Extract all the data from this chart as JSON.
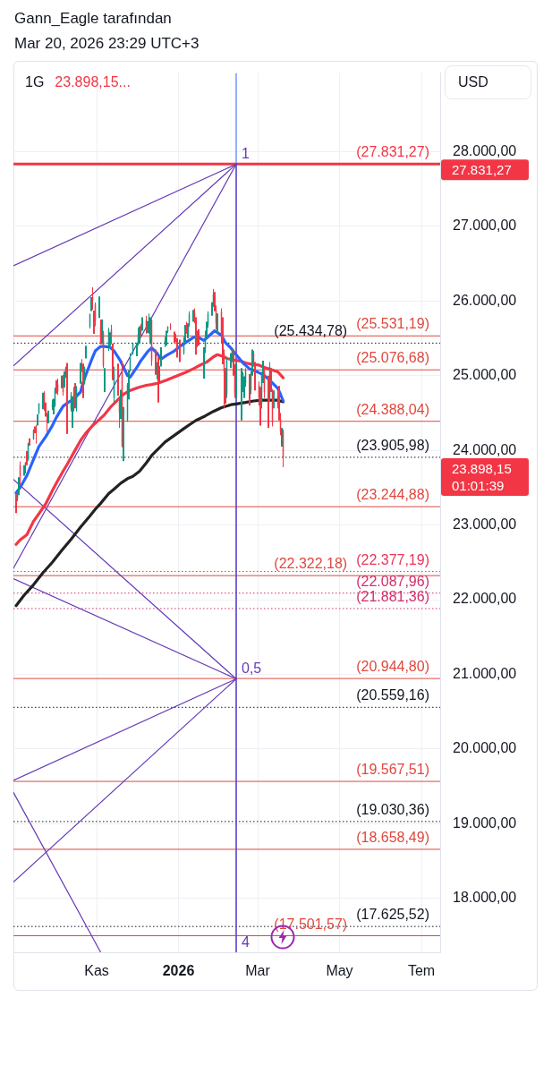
{
  "chart_data": {
    "type": "candlestick",
    "title": "1G",
    "annotations": [
      "Gann_Eagle tarafından",
      "Mar 20, 2026 23:29 UTC+3",
      "23.898,15...",
      "USD",
      "27.831,27",
      "23.898,15",
      "01:01:39",
      {
        "text": "1",
        "x": "2026-02-13",
        "y": 27831.27
      },
      {
        "text": "0,5",
        "x": "2026-02-13",
        "y": 20944.8
      },
      {
        "text": "4",
        "x": "2026-02-13",
        "y": 17280
      }
    ],
    "series": [
      {
        "x": [
          "2025-09-02",
          "2025-09-03",
          "2025-09-04",
          "2025-09-05",
          "2025-09-08",
          "2025-09-09",
          "2025-09-10",
          "2025-09-11",
          "2025-09-12",
          "2025-09-15",
          "2025-09-16",
          "2025-09-17",
          "2025-09-18",
          "2025-09-19",
          "2025-09-22",
          "2025-09-23",
          "2025-09-24",
          "2025-09-25",
          "2025-09-26",
          "2025-09-29",
          "2025-09-30",
          "2025-10-01",
          "2025-10-02",
          "2025-10-03",
          "2025-10-06",
          "2025-10-07",
          "2025-10-08",
          "2025-10-09",
          "2025-10-10",
          "2025-10-13",
          "2025-10-14",
          "2025-10-15",
          "2025-10-16",
          "2025-10-17",
          "2025-10-20",
          "2025-10-21",
          "2025-10-22",
          "2025-10-23",
          "2025-10-24",
          "2025-10-27",
          "2025-10-28",
          "2025-10-29",
          "2025-10-30",
          "2025-10-31",
          "2025-11-03",
          "2025-11-04",
          "2025-11-05",
          "2025-11-06",
          "2025-11-07",
          "2025-11-10",
          "2025-11-11",
          "2025-11-12",
          "2025-11-13",
          "2025-11-14",
          "2025-11-17",
          "2025-11-18",
          "2025-11-19",
          "2025-11-20",
          "2025-11-21",
          "2025-11-24",
          "2025-11-25",
          "2025-11-26",
          "2025-11-28",
          "2025-12-01",
          "2025-12-02",
          "2025-12-03",
          "2025-12-04",
          "2025-12-05",
          "2025-12-08",
          "2025-12-09",
          "2025-12-10",
          "2025-12-11",
          "2025-12-12",
          "2025-12-15",
          "2025-12-16",
          "2025-12-17",
          "2025-12-18",
          "2025-12-19",
          "2025-12-22",
          "2025-12-23",
          "2025-12-24",
          "2025-12-26",
          "2025-12-29",
          "2025-12-30",
          "2025-12-31",
          "2026-01-02",
          "2026-01-05",
          "2026-01-06",
          "2026-01-07",
          "2026-01-08",
          "2026-01-09",
          "2026-01-12",
          "2026-01-13",
          "2026-01-14",
          "2026-01-15",
          "2026-01-16",
          "2026-01-20",
          "2026-01-21",
          "2026-01-22",
          "2026-01-23",
          "2026-01-26",
          "2026-01-27",
          "2026-01-28",
          "2026-01-29",
          "2026-01-30",
          "2026-02-02",
          "2026-02-03",
          "2026-02-04",
          "2026-02-05",
          "2026-02-06",
          "2026-02-09",
          "2026-02-10",
          "2026-02-11",
          "2026-02-12",
          "2026-02-13",
          "2026-02-17",
          "2026-02-18",
          "2026-02-19",
          "2026-02-20",
          "2026-02-23",
          "2026-02-24",
          "2026-02-25",
          "2026-02-26",
          "2026-02-27",
          "2026-03-02",
          "2026-03-03",
          "2026-03-04",
          "2026-03-05",
          "2026-03-06",
          "2026-03-09",
          "2026-03-10",
          "2026-03-11",
          "2026-03-12",
          "2026-03-13",
          "2026-03-16",
          "2026-03-17",
          "2026-03-18",
          "2026-03-19",
          "2026-03-20"
        ],
        "ohlc": [
          [
            23280,
            23420,
            23160,
            23230
          ],
          [
            23350,
            23450,
            23320,
            23415
          ],
          [
            23430,
            23640,
            23400,
            23633
          ],
          [
            23800,
            23850,
            23540,
            23652
          ],
          [
            23700,
            23800,
            23660,
            23762
          ],
          [
            23770,
            23840,
            23690,
            23839
          ],
          [
            23950,
            23990,
            23800,
            23849
          ],
          [
            23880,
            24100,
            23860,
            24093
          ],
          [
            24110,
            24160,
            24060,
            24093
          ],
          [
            24150,
            24280,
            24140,
            24276
          ],
          [
            24300,
            24320,
            24230,
            24275
          ],
          [
            24280,
            24340,
            24090,
            24239
          ],
          [
            24400,
            24480,
            24330,
            24454
          ],
          [
            24500,
            24630,
            24480,
            24626
          ],
          [
            24560,
            24770,
            24550,
            24762
          ],
          [
            24770,
            24790,
            24530,
            24580
          ],
          [
            24620,
            24640,
            24450,
            24504
          ],
          [
            24410,
            24500,
            24250,
            24395
          ],
          [
            24420,
            24530,
            24360,
            24503
          ],
          [
            24580,
            24680,
            24540,
            24612
          ],
          [
            24580,
            24690,
            24480,
            24680
          ],
          [
            24600,
            24840,
            24580,
            24820
          ],
          [
            24900,
            24940,
            24760,
            24850
          ],
          [
            24880,
            24960,
            24740,
            24785
          ],
          [
            24850,
            25000,
            24830,
            24980
          ],
          [
            25000,
            25010,
            24730,
            24780
          ],
          [
            24850,
            25060,
            24840,
            25050
          ],
          [
            25070,
            25120,
            24970,
            25100
          ],
          [
            25150,
            25170,
            24220,
            24222
          ],
          [
            24550,
            24780,
            24520,
            24750
          ],
          [
            24450,
            24720,
            24300,
            24600
          ],
          [
            24700,
            24850,
            24520,
            24750
          ],
          [
            24830,
            24900,
            24560,
            24650
          ],
          [
            24600,
            24860,
            24520,
            24818
          ],
          [
            24900,
            25170,
            24890,
            25142
          ],
          [
            25150,
            25220,
            25050,
            25140
          ],
          [
            25150,
            25160,
            24700,
            24880
          ],
          [
            24900,
            25120,
            24880,
            25100
          ],
          [
            25250,
            25400,
            25230,
            25358
          ],
          [
            25650,
            25830,
            25630,
            25821
          ],
          [
            25900,
            26050,
            25860,
            26012
          ],
          [
            26050,
            26182,
            25880,
            26012
          ],
          [
            25820,
            25870,
            25560,
            25600
          ],
          [
            25950,
            25980,
            25660,
            25732
          ],
          [
            25900,
            26060,
            25770,
            25972
          ],
          [
            25650,
            25750,
            25420,
            25435
          ],
          [
            25450,
            25750,
            25420,
            25620
          ],
          [
            25580,
            25600,
            25100,
            25130
          ],
          [
            25000,
            25100,
            24780,
            25060
          ],
          [
            25400,
            25640,
            25330,
            25612
          ],
          [
            25500,
            25580,
            25400,
            25533
          ],
          [
            25620,
            25680,
            25420,
            25517
          ],
          [
            25400,
            25430,
            24940,
            24993
          ],
          [
            24700,
            25120,
            24640,
            25008
          ],
          [
            24980,
            25160,
            24730,
            24800
          ],
          [
            24650,
            24700,
            24300,
            24503
          ],
          [
            24540,
            24810,
            24420,
            24640
          ],
          [
            25100,
            25200,
            24040,
            24054
          ],
          [
            24130,
            24580,
            23854,
            24240
          ],
          [
            24400,
            24900,
            24380,
            24875
          ],
          [
            24880,
            25070,
            24680,
            25018
          ],
          [
            25080,
            25300,
            25050,
            25237
          ],
          [
            25300,
            25440,
            25280,
            25435
          ],
          [
            25300,
            25440,
            25260,
            25342
          ],
          [
            25420,
            25640,
            25400,
            25555
          ],
          [
            25470,
            25660,
            25430,
            25606
          ],
          [
            25640,
            25690,
            25510,
            25581
          ],
          [
            25620,
            25780,
            25600,
            25692
          ],
          [
            25740,
            25800,
            25560,
            25628
          ],
          [
            25610,
            25730,
            25570,
            25670
          ],
          [
            25660,
            25830,
            25560,
            25776
          ],
          [
            25650,
            25780,
            25420,
            25760
          ],
          [
            25740,
            25760,
            25130,
            25197
          ],
          [
            25330,
            25350,
            25010,
            25067
          ],
          [
            25050,
            25180,
            24950,
            25132
          ],
          [
            25200,
            25250,
            24640,
            24647
          ],
          [
            25000,
            25130,
            24900,
            25019
          ],
          [
            25150,
            25380,
            25120,
            25346
          ],
          [
            25450,
            25520,
            25380,
            25461
          ],
          [
            25430,
            25600,
            25400,
            25588
          ],
          [
            25590,
            25660,
            25570,
            25656
          ],
          [
            25660,
            25700,
            25610,
            25644
          ],
          [
            25560,
            25590,
            25440,
            25525
          ],
          [
            25520,
            25560,
            25450,
            25465
          ],
          [
            25480,
            25500,
            25240,
            25250
          ],
          [
            25350,
            25480,
            25180,
            25230
          ],
          [
            25300,
            25520,
            25280,
            25470
          ],
          [
            25460,
            25680,
            25440,
            25650
          ],
          [
            25640,
            25720,
            25560,
            25600
          ],
          [
            25580,
            25700,
            25500,
            25660
          ],
          [
            25680,
            25860,
            25650,
            25820
          ],
          [
            25780,
            25880,
            25720,
            25850
          ],
          [
            25840,
            25900,
            25700,
            25760
          ],
          [
            25750,
            25780,
            25280,
            25410
          ],
          [
            25450,
            25600,
            25380,
            25520
          ],
          [
            25560,
            25620,
            25400,
            25480
          ],
          [
            25000,
            25380,
            24960,
            25330
          ],
          [
            25350,
            25600,
            25300,
            25540
          ],
          [
            25560,
            25720,
            25500,
            25680
          ],
          [
            25680,
            25860,
            25640,
            25830
          ],
          [
            25850,
            25980,
            25800,
            25940
          ],
          [
            25950,
            26160,
            25920,
            26090
          ],
          [
            26090,
            26120,
            25860,
            25900
          ],
          [
            25880,
            25940,
            25620,
            25700
          ],
          [
            25720,
            25830,
            25560,
            25780
          ],
          [
            25860,
            25900,
            25430,
            25550
          ],
          [
            25740,
            25780,
            25150,
            25230
          ],
          [
            25300,
            25350,
            24560,
            25050
          ],
          [
            25050,
            25100,
            24620,
            24680
          ],
          [
            24750,
            25250,
            24700,
            25200
          ],
          [
            25150,
            25300,
            25100,
            25260
          ],
          [
            25250,
            25360,
            25180,
            25330
          ],
          [
            25310,
            25350,
            25000,
            25050
          ],
          [
            25100,
            25150,
            24700,
            24760
          ],
          [
            24760,
            25170,
            24700,
            25120
          ],
          [
            24900,
            25100,
            24400,
            25050
          ],
          [
            24850,
            25050,
            24780,
            25030
          ],
          [
            24760,
            24990,
            24700,
            24950
          ],
          [
            24900,
            25100,
            24850,
            25070
          ],
          [
            24990,
            25020,
            24600,
            24680
          ],
          [
            24800,
            25060,
            24750,
            25030
          ],
          [
            25050,
            25350,
            25000,
            25320
          ],
          [
            25300,
            25330,
            25120,
            25170
          ],
          [
            25150,
            25180,
            24800,
            24840
          ],
          [
            24870,
            24920,
            24600,
            24700
          ],
          [
            24800,
            24850,
            24330,
            24600
          ],
          [
            24620,
            25050,
            24560,
            25000
          ],
          [
            24950,
            25200,
            24900,
            25150
          ],
          [
            25050,
            25100,
            24700,
            24780
          ],
          [
            24950,
            25000,
            24300,
            24650
          ],
          [
            24700,
            25180,
            24650,
            25120
          ],
          [
            25050,
            25100,
            24780,
            24830
          ],
          [
            24800,
            24820,
            24320,
            24370
          ],
          [
            24640,
            24800,
            24560,
            24760
          ],
          [
            24720,
            24790,
            24560,
            24610
          ],
          [
            24800,
            24860,
            24400,
            24450
          ],
          [
            24420,
            24500,
            24200,
            24250
          ],
          [
            24110,
            24300,
            24050,
            24250
          ],
          [
            24250,
            24280,
            23774,
            23898.15
          ]
        ],
        "colors": [
          "#f23645",
          "#089981",
          "#089981",
          "#f23645",
          "#089981",
          "#089981",
          "#f23645",
          "#089981",
          "#f23645",
          "#089981",
          "#f23645",
          "#f23645",
          "#089981",
          "#089981",
          "#089981",
          "#f23645",
          "#f23645",
          "#f23645",
          "#089981",
          "#089981",
          "#089981",
          "#089981",
          "#f23645",
          "#f23645",
          "#089981",
          "#f23645",
          "#089981",
          "#089981",
          "#f23645",
          "#089981",
          "#089981",
          "#089981",
          "#f23645",
          "#089981",
          "#089981",
          "#f23645",
          "#f23645",
          "#089981",
          "#089981",
          "#089981",
          "#089981",
          "#f23645",
          "#f23645",
          "#f23645",
          "#089981",
          "#f23645",
          "#089981",
          "#f23645",
          "#089981",
          "#089981",
          "#089981",
          "#f23645",
          "#f23645",
          "#089981",
          "#f23645",
          "#f23645",
          "#089981",
          "#f23645",
          "#089981",
          "#089981",
          "#089981",
          "#089981",
          "#089981",
          "#089981",
          "#089981",
          "#089981",
          "#f23645",
          "#089981",
          "#f23645",
          "#089981",
          "#089981",
          "#089981",
          "#f23645",
          "#f23645",
          "#089981",
          "#f23645",
          "#089981",
          "#089981",
          "#089981",
          "#089981",
          "#089981",
          "#f23645",
          "#f23645",
          "#f23645",
          "#f23645",
          "#f23645",
          "#089981",
          "#089981",
          "#f23645",
          "#089981",
          "#089981",
          "#089981",
          "#f23645",
          "#f23645",
          "#089981",
          "#f23645",
          "#089981",
          "#089981",
          "#089981",
          "#089981",
          "#089981",
          "#089981",
          "#f23645",
          "#f23645",
          "#089981",
          "#f23645",
          "#f23645",
          "#f23645",
          "#f23645",
          "#089981",
          "#089981",
          "#089981",
          "#f23645",
          "#f23645",
          "#089981",
          "#089981",
          "#089981",
          "#089981",
          "#089981",
          "#f23645",
          "#089981",
          "#089981",
          "#f23645",
          "#f23645",
          "#f23645",
          "#f23645",
          "#089981",
          "#089981",
          "#f23645",
          "#f23645",
          "#089981",
          "#f23645",
          "#f23645",
          "#089981",
          "#f23645",
          "#f23645",
          "#f23645",
          "#089981",
          "#f23645"
        ]
      },
      {
        "type": "line",
        "color": "#2962ff",
        "x": [
          "2025-09-02",
          "2025-09-05",
          "2025-09-10",
          "2025-09-15",
          "2025-09-19",
          "2025-09-24",
          "2025-09-29",
          "2025-10-02",
          "2025-10-07",
          "2025-10-10",
          "2025-10-15",
          "2025-10-20",
          "2025-10-22",
          "2025-10-24",
          "2025-10-28",
          "2025-10-31",
          "2025-11-04",
          "2025-11-07",
          "2025-11-11",
          "2025-11-14",
          "2025-11-18",
          "2025-11-20",
          "2025-11-24",
          "2025-11-26",
          "2025-12-01",
          "2025-12-04",
          "2025-12-09",
          "2025-12-12",
          "2025-12-16",
          "2025-12-19",
          "2025-12-23",
          "2025-12-29",
          "2026-01-02",
          "2026-01-07",
          "2026-01-12",
          "2026-01-15",
          "2026-01-20",
          "2026-01-23",
          "2026-01-28",
          "2026-02-02",
          "2026-02-05",
          "2026-02-09",
          "2026-02-12",
          "2026-02-18",
          "2026-02-23",
          "2026-02-26",
          "2026-03-03",
          "2026-03-06",
          "2026-03-11",
          "2026-03-16",
          "2026-03-18",
          "2026-03-20"
        ],
        "values": [
          23430,
          23500,
          23660,
          23880,
          24050,
          24180,
          24330,
          24440,
          24590,
          24630,
          24690,
          24780,
          24910,
          25010,
          25200,
          25330,
          25390,
          25390,
          25380,
          25330,
          25220,
          25150,
          25000,
          24980,
          25110,
          25200,
          25320,
          25370,
          25300,
          25220,
          25270,
          25330,
          25390,
          25450,
          25510,
          25520,
          25470,
          25520,
          25600,
          25540,
          25440,
          25370,
          25300,
          25170,
          25090,
          25070,
          25030,
          25000,
          24920,
          24830,
          24750,
          24660
        ]
      },
      {
        "type": "line",
        "color": "#f23645",
        "x": [
          "2025-09-02",
          "2025-09-05",
          "2025-09-10",
          "2025-09-15",
          "2025-09-19",
          "2025-09-24",
          "2025-09-29",
          "2025-10-02",
          "2025-10-07",
          "2025-10-10",
          "2025-10-15",
          "2025-10-20",
          "2025-10-24",
          "2025-10-29",
          "2025-11-03",
          "2025-11-07",
          "2025-11-12",
          "2025-11-17",
          "2025-11-21",
          "2025-11-26",
          "2025-12-02",
          "2025-12-08",
          "2025-12-12",
          "2025-12-17",
          "2025-12-23",
          "2025-12-30",
          "2026-01-06",
          "2026-01-12",
          "2026-01-16",
          "2026-01-22",
          "2026-01-27",
          "2026-01-30",
          "2026-02-03",
          "2026-02-06",
          "2026-02-11",
          "2026-02-17",
          "2026-02-20",
          "2026-02-25",
          "2026-03-02",
          "2026-03-06",
          "2026-03-11",
          "2026-03-16",
          "2026-03-18",
          "2026-03-20"
        ],
        "values": [
          22740,
          22800,
          22870,
          23050,
          23150,
          23280,
          23460,
          23560,
          23720,
          23810,
          23970,
          24130,
          24230,
          24330,
          24410,
          24480,
          24590,
          24680,
          24750,
          24800,
          24840,
          24870,
          24880,
          24900,
          24940,
          24990,
          25040,
          25090,
          25130,
          25180,
          25250,
          25280,
          25260,
          25230,
          25210,
          25190,
          25170,
          25150,
          25140,
          25110,
          25080,
          25050,
          25010,
          24970
        ]
      },
      {
        "type": "line",
        "color": "#222222",
        "x": [
          "2025-09-02",
          "2025-09-08",
          "2025-09-15",
          "2025-09-22",
          "2025-09-29",
          "2025-10-06",
          "2025-10-13",
          "2025-10-20",
          "2025-10-27",
          "2025-10-31",
          "2025-11-04",
          "2025-11-10",
          "2025-11-14",
          "2025-11-19",
          "2025-11-24",
          "2025-11-28",
          "2025-12-03",
          "2025-12-08",
          "2025-12-12",
          "2025-12-17",
          "2025-12-22",
          "2025-12-29",
          "2026-01-05",
          "2026-01-09",
          "2026-01-14",
          "2026-01-21",
          "2026-01-27",
          "2026-02-02",
          "2026-02-09",
          "2026-02-13",
          "2026-02-20",
          "2026-02-26",
          "2026-03-04",
          "2026-03-10",
          "2026-03-16",
          "2026-03-20"
        ],
        "values": [
          21920,
          22060,
          22200,
          22360,
          22500,
          22660,
          22810,
          22970,
          23120,
          23210,
          23290,
          23420,
          23480,
          23560,
          23620,
          23650,
          23720,
          23830,
          23930,
          24020,
          24110,
          24200,
          24290,
          24340,
          24400,
          24460,
          24520,
          24570,
          24610,
          24620,
          24640,
          24660,
          24670,
          24670,
          24670,
          24650
        ]
      },
      {
        "type": "line",
        "color": "#673ab7",
        "x": [
          "2025-08-31",
          "2026-02-13"
        ],
        "values": [
          26470,
          27830
        ]
      },
      {
        "type": "line",
        "color": "#673ab7",
        "x": [
          "2025-08-31",
          "2026-02-13"
        ],
        "values": [
          25130,
          27830
        ]
      },
      {
        "type": "line",
        "color": "#673ab7",
        "x": [
          "2025-08-31",
          "2026-02-13"
        ],
        "values": [
          22420,
          27830
        ]
      },
      {
        "type": "line",
        "color": "#673ab7",
        "x": [
          "2026-02-13",
          "2026-02-13"
        ],
        "values": [
          27830,
          17280
        ]
      },
      {
        "type": "line",
        "color": "#673ab7",
        "x": [
          "2025-08-31",
          "2026-02-13"
        ],
        "values": [
          22280,
          20940
        ]
      },
      {
        "type": "line",
        "color": "#673ab7",
        "x": [
          "2025-08-31",
          "2026-02-13"
        ],
        "values": [
          23610,
          20940
        ]
      },
      {
        "type": "line",
        "color": "#673ab7",
        "x": [
          "2025-08-31",
          "2026-02-13"
        ],
        "values": [
          19580,
          20940
        ]
      },
      {
        "type": "line",
        "color": "#673ab7",
        "x": [
          "2025-08-31",
          "2026-02-13"
        ],
        "values": [
          18220,
          20940
        ]
      },
      {
        "type": "line",
        "color": "#673ab7",
        "x": [
          "2025-08-31",
          "2025-11-04"
        ],
        "values": [
          19420,
          17280
        ]
      }
    ],
    "xlim": [
      "2025-08-31",
      "2026-07-15"
    ],
    "xticks": [
      {
        "value": "2025-11-01",
        "label": "Kas"
      },
      {
        "value": "2026-01-01",
        "label": "2026"
      },
      {
        "value": "2026-03-01",
        "label": "Mar"
      },
      {
        "value": "2026-05-01",
        "label": "May"
      },
      {
        "value": "2026-07-01",
        "label": "Tem"
      }
    ],
    "ylim": [
      17280,
      29050
    ],
    "yticks": [
      {
        "value": 18000,
        "label": "18.000,00"
      },
      {
        "value": 19000,
        "label": "19.000,00"
      },
      {
        "value": 20000,
        "label": "20.000,00"
      },
      {
        "value": 21000,
        "label": "21.000,00"
      },
      {
        "value": 22000,
        "label": "22.000,00"
      },
      {
        "value": 23000,
        "label": "23.000,00"
      },
      {
        "value": 24000,
        "label": "24.000,00"
      },
      {
        "value": 25000,
        "label": "25.000,00"
      },
      {
        "value": 26000,
        "label": "26.000,00"
      },
      {
        "value": 27000,
        "label": "27.000,00"
      },
      {
        "value": 28000,
        "label": "28.000,00"
      }
    ],
    "grid": true,
    "ref_lines": [
      {
        "axis": "y",
        "value": 27831.27,
        "label": "(27.831,27)",
        "color": "#f23645"
      },
      {
        "axis": "y",
        "value": 25531.19,
        "label": "(25.531,19)",
        "color": "#e0483e"
      },
      {
        "axis": "y",
        "value": 25434.78,
        "label": "(25.434,78)",
        "color": "#131722",
        "line_style": "dotted"
      },
      {
        "axis": "y",
        "value": 25076.68,
        "label": "(25.076,68)",
        "color": "#e0483e"
      },
      {
        "axis": "y",
        "value": 24388.04,
        "label": "(24.388,04)",
        "color": "#e0483e"
      },
      {
        "axis": "y",
        "value": 23905.98,
        "label": "(23.905,98)",
        "color": "#131722",
        "line_style": "dotted"
      },
      {
        "axis": "y",
        "value": 23244.88,
        "label": "(23.244,88)",
        "color": "#e0483e"
      },
      {
        "axis": "y",
        "value": 22377.19,
        "label": "(22.377,19)",
        "color": "#e8345a",
        "line_style": "dotted"
      },
      {
        "axis": "y",
        "value": 22322.18,
        "label": "(22.322,18)",
        "color": "#e0483e"
      },
      {
        "axis": "y",
        "value": 22087.96,
        "label": "(22.087,96)",
        "color": "#d0306a",
        "line_style": "dotted"
      },
      {
        "axis": "y",
        "value": 21881.36,
        "label": "(21.881,36)",
        "color": "#d0306a",
        "line_style": "dotted"
      },
      {
        "axis": "y",
        "value": 20944.8,
        "label": "(20.944,80)",
        "color": "#e0483e"
      },
      {
        "axis": "y",
        "value": 20559.16,
        "label": "(20.559,16)",
        "color": "#131722",
        "line_style": "dotted"
      },
      {
        "axis": "y",
        "value": 19567.51,
        "label": "(19.567,51)",
        "color": "#e0483e"
      },
      {
        "axis": "y",
        "value": 19030.36,
        "label": "(19.030,36)",
        "color": "#131722",
        "line_style": "dotted"
      },
      {
        "axis": "y",
        "value": 18658.49,
        "label": "(18.658,49)",
        "color": "#e0483e"
      },
      {
        "axis": "y",
        "value": 17625.52,
        "label": "(17.625,52)",
        "color": "#131722",
        "line_style": "dotted"
      },
      {
        "axis": "y",
        "value": 17501.57,
        "label": "(17.501,57)",
        "color": "#e0483e"
      },
      {
        "axis": "x",
        "value": "2026-02-13",
        "color": "#2962ff"
      }
    ]
  }
}
